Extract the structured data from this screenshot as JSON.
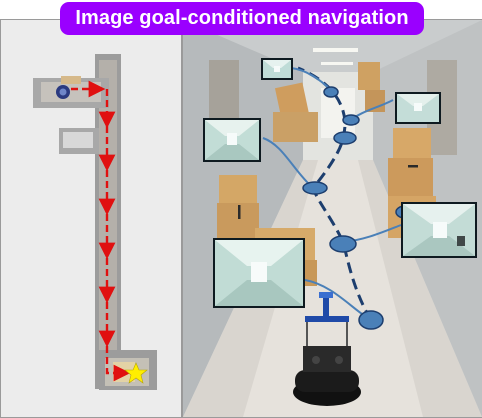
{
  "header": {
    "title": "Image goal-conditioned navigation"
  },
  "map": {
    "arrow_color": "#e01010",
    "goal_marker_color": "#ffee00",
    "start_marker": "robot-icon",
    "goal_marker": "star-icon"
  },
  "scene": {
    "path_color": "#1d3e6e",
    "waypoint_fill": "#4a80b8",
    "goal_image_count": 5,
    "waypoint_count": 7
  }
}
